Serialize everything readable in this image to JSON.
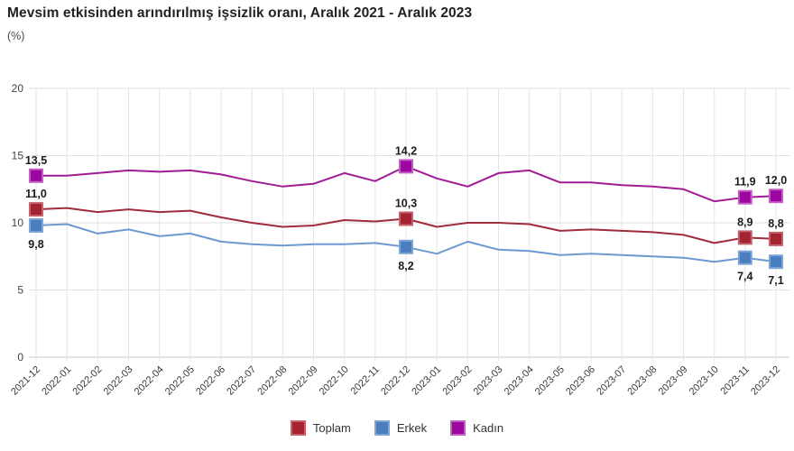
{
  "header": {
    "title": "Mevsim etkisinden arındırılmış işsizlik oranı, Aralık 2021 - Aralık 2023",
    "unit": "(%)"
  },
  "chart_data": {
    "type": "line",
    "x": [
      "2021-12",
      "2022-01",
      "2022-02",
      "2022-03",
      "2022-04",
      "2022-05",
      "2022-06",
      "2022-07",
      "2022-08",
      "2022-09",
      "2022-10",
      "2022-11",
      "2022-12",
      "2023-01",
      "2023-02",
      "2023-03",
      "2023-04",
      "2023-05",
      "2023-06",
      "2023-07",
      "2023-08",
      "2023-09",
      "2023-10",
      "2023-11",
      "2023-12"
    ],
    "ylabel": "(%)",
    "ylim": [
      0,
      20
    ],
    "yticks": [
      0,
      5,
      10,
      15,
      20
    ],
    "grid": true,
    "legend_position": "bottom",
    "series": [
      {
        "name": "Toplam",
        "key": "toplam",
        "color": "#A42331",
        "border": "#C4626D",
        "line_color": "#A02C3C",
        "values": [
          11.0,
          11.1,
          10.8,
          11.0,
          10.8,
          10.9,
          10.4,
          10.0,
          9.7,
          9.8,
          10.2,
          10.1,
          10.3,
          9.7,
          10.0,
          10.0,
          9.9,
          9.4,
          9.5,
          9.4,
          9.3,
          9.1,
          8.5,
          8.9,
          8.8
        ],
        "labeled": [
          {
            "i": 0,
            "text": "11,0",
            "pos": "above"
          },
          {
            "i": 12,
            "text": "10,3",
            "pos": "above"
          },
          {
            "i": 23,
            "text": "8,9",
            "pos": "above"
          },
          {
            "i": 24,
            "text": "8,8",
            "pos": "above"
          }
        ]
      },
      {
        "name": "Erkek",
        "key": "erkek",
        "color": "#4A7EBE",
        "border": "#7FA5D8",
        "line_color": "#6C99D1",
        "values": [
          9.8,
          9.9,
          9.2,
          9.5,
          9.0,
          9.2,
          8.6,
          8.4,
          8.3,
          8.4,
          8.4,
          8.5,
          8.2,
          7.7,
          8.6,
          8.0,
          7.9,
          7.6,
          7.7,
          7.6,
          7.5,
          7.4,
          7.1,
          7.4,
          7.1
        ],
        "labeled": [
          {
            "i": 0,
            "text": "9,8",
            "pos": "below"
          },
          {
            "i": 12,
            "text": "8,2",
            "pos": "below"
          },
          {
            "i": 23,
            "text": "7,4",
            "pos": "below"
          },
          {
            "i": 24,
            "text": "7,1",
            "pos": "below"
          }
        ]
      },
      {
        "name": "Kadın",
        "key": "kadin",
        "color": "#9A069E",
        "border": "#C45EC4",
        "line_color": "#A21C96",
        "values": [
          13.5,
          13.5,
          13.7,
          13.9,
          13.8,
          13.9,
          13.6,
          13.1,
          12.7,
          12.9,
          13.7,
          13.1,
          14.2,
          13.3,
          12.7,
          13.7,
          13.9,
          13.0,
          13.0,
          12.8,
          12.7,
          12.5,
          11.6,
          11.9,
          12.0
        ],
        "labeled": [
          {
            "i": 0,
            "text": "13,5",
            "pos": "above"
          },
          {
            "i": 12,
            "text": "14,2",
            "pos": "above"
          },
          {
            "i": 23,
            "text": "11,9",
            "pos": "above"
          },
          {
            "i": 24,
            "text": "12,0",
            "pos": "above"
          }
        ]
      }
    ]
  },
  "legend": {
    "items": [
      {
        "label": "Toplam"
      },
      {
        "label": "Erkek"
      },
      {
        "label": "Kadın"
      }
    ]
  }
}
